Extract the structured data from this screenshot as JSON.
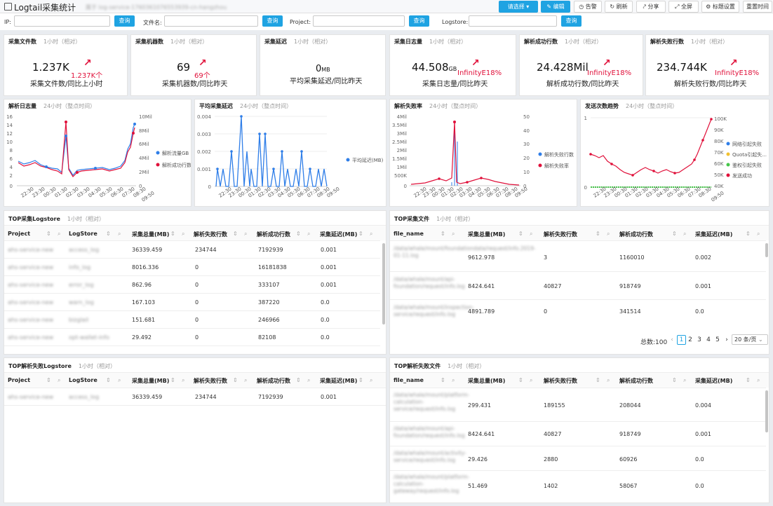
{
  "header": {
    "title": "Logtail采集统计",
    "subtitle_blurred": "属于 log-service-1760361076553939-cn-hangzhou",
    "buttons": [
      "请选择",
      "编辑",
      "告警",
      "刷新",
      "分享",
      "全屏",
      "标题设置",
      "重置时间"
    ]
  },
  "filters": {
    "ip_label": "IP:",
    "file_label": "文件名:",
    "project_label": "Project:",
    "logstore_label": "Logstore:",
    "query": "查询"
  },
  "kpis": [
    {
      "title": "采集文件数",
      "range": "1小时（相对）",
      "value": "1.237K",
      "unit": "",
      "change": "1.237K个",
      "label": "采集文件数/同比上小时"
    },
    {
      "title": "采集机器数",
      "range": "1小时（相对）",
      "value": "69",
      "unit": "",
      "change": "69个",
      "label": "采集机器数/同比昨天"
    },
    {
      "title": "采集延迟",
      "range": "1小时（相对）",
      "value": "0",
      "unit": "MB",
      "change": "",
      "label": "平均采集延迟/同比昨天"
    },
    {
      "title": "采集日志量",
      "range": "1小时（相对）",
      "value": "44.508",
      "unit": "GB",
      "change": "InfinityE18%",
      "label": "采集日志量/同比昨天"
    },
    {
      "title": "解析成功行数",
      "range": "1小时（相对）",
      "value": "24.428Mil",
      "unit": "",
      "change": "InfinityE18%",
      "label": "解析成功行数/同比昨天"
    },
    {
      "title": "解析失败行数",
      "range": "1小时（相对）",
      "value": "234.744K",
      "unit": "",
      "change": "InfinityE18%",
      "label": "解析失败行数/同比昨天"
    }
  ],
  "charts": [
    {
      "title": "解析日志量",
      "range": "24小时（整点时间）",
      "left_ticks": [
        "16",
        "14",
        "12",
        "10",
        "8",
        "6",
        "4",
        "2",
        "0"
      ],
      "right_ticks": [
        "10Mil",
        "8Mil",
        "6Mil",
        "4Mil",
        "2Mil",
        "0"
      ],
      "legend": [
        "解析流量GB",
        "解析成功行数"
      ],
      "x_ticks": [
        "22:30",
        "23:30",
        "00:30",
        "01:30",
        "02:30",
        "03:30",
        "04:30",
        "05:30",
        "06:30",
        "07:30",
        "08:30",
        "09:50"
      ]
    },
    {
      "title": "平均采集延迟",
      "range": "24小时（整点时间）",
      "left_ticks": [
        "0.004",
        "0.003",
        "0.002",
        "0.001",
        "0"
      ],
      "right_ticks": [],
      "legend": [
        "平均延迟(MB)"
      ],
      "x_ticks": [
        "22:30",
        "23:30",
        "00:30",
        "01:30",
        "02:30",
        "03:30",
        "04:30",
        "05:30",
        "06:30",
        "07:30",
        "08:30",
        "09:50"
      ]
    },
    {
      "title": "解析失败率",
      "range": "24小时（整点时间）",
      "left_ticks": [
        "4Mil",
        "3.5Mil",
        "3Mil",
        "2.5Mil",
        "2Mil",
        "1.5Mil",
        "1Mil",
        "500K",
        "0"
      ],
      "right_ticks": [
        "50",
        "40",
        "30",
        "20",
        "10",
        "0"
      ],
      "legend": [
        "解析失败行数",
        "解析失败率"
      ],
      "x_ticks": [
        "22:30",
        "23:30",
        "00:30",
        "01:30",
        "02:30",
        "03:30",
        "04:30",
        "05:30",
        "06:30",
        "07:30",
        "08:30",
        "09:50"
      ]
    },
    {
      "title": "发送次数趋势",
      "range": "24小时（整点时间）",
      "left_ticks": [
        "1",
        "0"
      ],
      "right_ticks": [
        "100K",
        "90K",
        "80K",
        "70K",
        "60K",
        "50K",
        "40K"
      ],
      "legend": [
        "网络引起失败",
        "Quota引起失...",
        "鉴权引起失败",
        "发送成功"
      ],
      "x_ticks": [
        "22:30",
        "23:30",
        "00:30",
        "01:30",
        "02:30",
        "03:30",
        "04:30",
        "05:30",
        "06:30",
        "07:30",
        "08:30",
        "09:50"
      ]
    }
  ],
  "tables": {
    "top_logstore": {
      "title": "TOP采集Logstore",
      "range": "1小时（相对）",
      "columns": [
        "Project",
        "LogStore",
        "采集总量(MB)",
        "解析失败行数",
        "解析成功行数",
        "采集延迟(MB)"
      ],
      "rows": [
        [
          "ahs-service-new",
          "access_log",
          "36339.459",
          "234744",
          "7192939",
          "0.001"
        ],
        [
          "ahs-service-new",
          "info_log",
          "8016.336",
          "0",
          "16181838",
          "0.001"
        ],
        [
          "ahs-service-new",
          "error_log",
          "862.96",
          "0",
          "333107",
          "0.001"
        ],
        [
          "ahs-service-new",
          "warn_log",
          "167.103",
          "0",
          "387220",
          "0.0"
        ],
        [
          "ahs-service-new",
          "bizglail",
          "151.681",
          "0",
          "246966",
          "0.0"
        ],
        [
          "ahs-service-new",
          "opt-wallet-info",
          "29.492",
          "0",
          "82108",
          "0.0"
        ]
      ]
    },
    "top_file": {
      "title": "TOP采集文件",
      "range": "1小时（相对）",
      "columns": [
        "file_name",
        "采集总量(MB)",
        "解析失败行数",
        "解析成功行数",
        "采集延迟(MB)"
      ],
      "rows": [
        [
          "/data/whale/mount/foundationdata/request/info.2019-01-11.log",
          "9612.978",
          "3",
          "1160010",
          "0.002"
        ],
        [
          "/data/whale/mount/api-foundation/request/info.log",
          "8424.641",
          "40827",
          "918749",
          "0.001"
        ],
        [
          "/data/whale/mount/inspection-service/request/info.log",
          "4891.789",
          "0",
          "341514",
          "0.0"
        ]
      ],
      "total": "总数:100",
      "pages": [
        "1",
        "2",
        "3",
        "4",
        "5"
      ],
      "page_size": "20 条/页"
    },
    "top_fail_logstore": {
      "title": "TOP解析失败Logstore",
      "range": "1小时（相对）",
      "columns": [
        "Project",
        "LogStore",
        "采集总量(MB)",
        "解析失败行数",
        "解析成功行数",
        "采集延迟(MB)"
      ],
      "rows": [
        [
          "ahs-service-new",
          "access_log",
          "36339.459",
          "234744",
          "7192939",
          "0.001"
        ]
      ]
    },
    "top_fail_file": {
      "title": "TOP解析失败文件",
      "range": "1小时（相对）",
      "columns": [
        "file_name",
        "采集总量(MB)",
        "解析失败行数",
        "解析成功行数",
        "采集延迟(MB)"
      ],
      "rows": [
        [
          "/data/whale/mount/platform-calculation-service/request/info.log",
          "299.431",
          "189155",
          "208044",
          "0.004"
        ],
        [
          "/data/whale/mount/api-foundation/request/info.log",
          "8424.641",
          "40827",
          "918749",
          "0.001"
        ],
        [
          "/data/whale/mount/activity-service/request/info.log",
          "29.426",
          "2880",
          "60926",
          "0.0"
        ],
        [
          "/data/whale/mount/platform-calculation-gateway/request/info.log",
          "51.469",
          "1402",
          "58067",
          "0.0"
        ]
      ]
    }
  },
  "colors": {
    "accent": "#1fa3e2",
    "blue": "#2f7ee8",
    "red": "#e0103a",
    "green": "#46c64a",
    "yellow": "#f2c12e"
  }
}
